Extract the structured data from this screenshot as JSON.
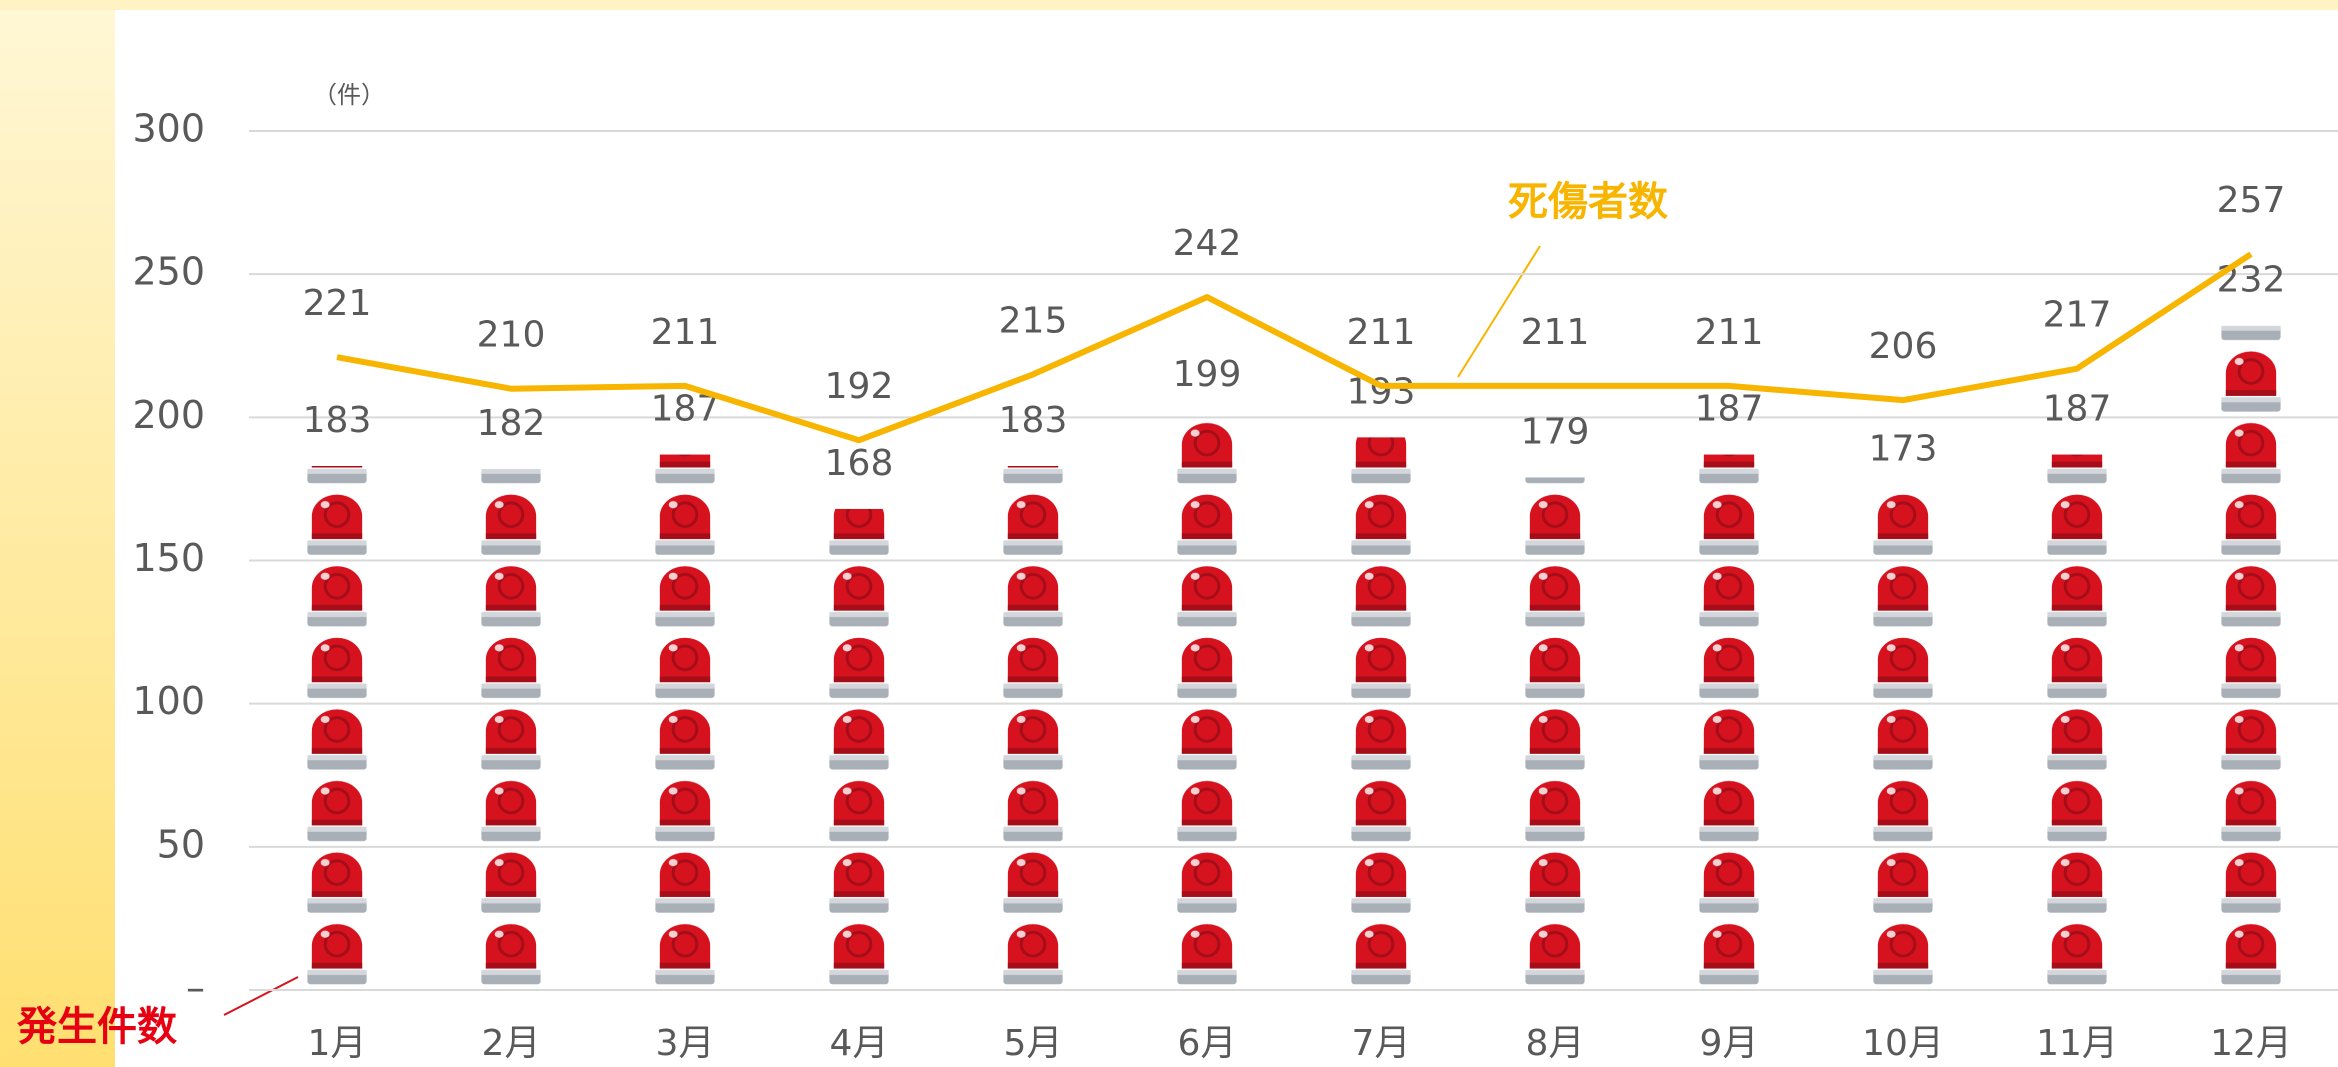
{
  "chart_data": {
    "type": "bar",
    "unit_label": "（件）",
    "categories": [
      "1月",
      "2月",
      "3月",
      "4月",
      "5月",
      "6月",
      "7月",
      "8月",
      "9月",
      "10月",
      "11月",
      "12月"
    ],
    "series": [
      {
        "name": "発生件数",
        "type": "bar",
        "color": "#d7121f",
        "values": [
          183,
          182,
          187,
          168,
          183,
          199,
          193,
          179,
          187,
          173,
          187,
          232
        ]
      },
      {
        "name": "死傷者数",
        "type": "line",
        "color": "#f7b500",
        "values": [
          221,
          210,
          211,
          192,
          215,
          242,
          211,
          211,
          211,
          206,
          217,
          257
        ]
      }
    ],
    "units_per_icon": 25,
    "ylim": [
      0,
      300
    ],
    "yticks": [
      {
        "value": 0,
        "label": "–"
      },
      50,
      100,
      150,
      200,
      250,
      300
    ],
    "grid": true
  }
}
